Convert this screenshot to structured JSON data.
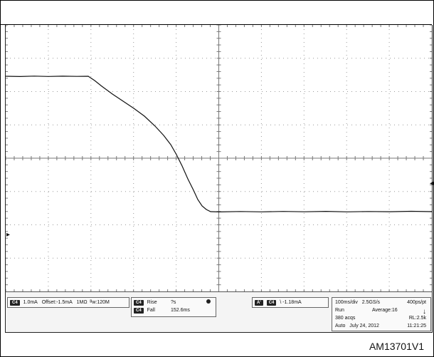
{
  "footer_code": "AM13701V1",
  "markers": {
    "channel": "▸",
    "trigger": "◂"
  },
  "status": {
    "channel": {
      "chip": "C4",
      "scale": "1.0mA",
      "offset": "Offset:-1.5mA",
      "coupling": "1MΩ",
      "bandwidth": "ᴮw:120M"
    },
    "measure": {
      "rise_chip": "C4",
      "rise_label": "Rise",
      "rise_value": "?s",
      "fall_chip": "C4",
      "fall_label": "Fall",
      "fall_value": "152.6ms"
    },
    "trigger": {
      "mode_chip": "A'",
      "source_chip": "C4",
      "slope": "\\",
      "level": "-1.18mA"
    },
    "timebase": {
      "scale": "100ms/div",
      "sample_rate": "2.5GS/s",
      "record": "400ps/pt",
      "run_state": "Run",
      "acquisition": "Average:16",
      "arrow": "↓",
      "acqs": "380 acqs",
      "record_length": "RL:2.5k",
      "mode": "Auto",
      "date": "July 24, 2012",
      "time": "11:21:25"
    }
  }
}
